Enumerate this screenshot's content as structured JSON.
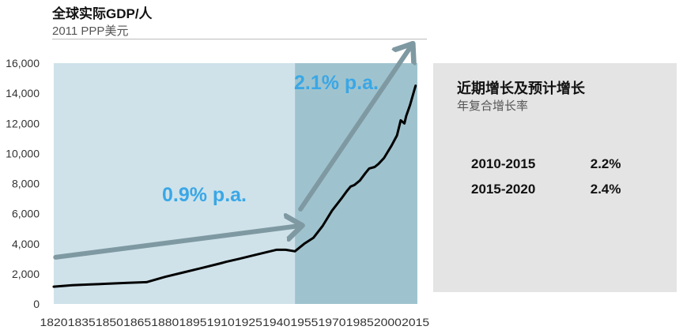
{
  "chart_data": {
    "type": "line",
    "title": "全球实际GDP/人",
    "subtitle": "2011 PPP美元",
    "ylim": [
      0,
      16000
    ],
    "yticks": [
      "16,000",
      "14,000",
      "12,000",
      "10,000",
      "8,000",
      "6,000",
      "4,000",
      "2,000",
      "0"
    ],
    "ytick_values": [
      16000,
      14000,
      12000,
      10000,
      8000,
      6000,
      4000,
      2000,
      0
    ],
    "xlim": [
      1820,
      2016
    ],
    "xticks": [
      1820,
      1835,
      1850,
      1865,
      1880,
      1895,
      1910,
      1925,
      1940,
      1955,
      1970,
      1985,
      2000,
      2015
    ],
    "xtick_labels": [
      "1820",
      "1835",
      "1850",
      "1865",
      "1880",
      "1895",
      "1910",
      "1925",
      "1940",
      "1955",
      "1970",
      "1985",
      "2000",
      "2015"
    ],
    "regions": [
      {
        "x0": 1820,
        "x1": 1950,
        "color": "#cfe2ea"
      },
      {
        "x0": 1950,
        "x1": 2016,
        "color": "#9fc3ce"
      }
    ],
    "series": [
      {
        "color": "#000000",
        "x": [
          1820,
          1830,
          1840,
          1850,
          1860,
          1870,
          1880,
          1890,
          1900,
          1910,
          1913,
          1920,
          1930,
          1940,
          1945,
          1950,
          1955,
          1960,
          1965,
          1970,
          1975,
          1978,
          1980,
          1982,
          1985,
          1988,
          1990,
          1993,
          1995,
          1998,
          2000,
          2002,
          2005,
          2007,
          2009,
          2010,
          2012,
          2015
        ],
        "y": [
          1150,
          1250,
          1300,
          1350,
          1400,
          1450,
          1800,
          2100,
          2400,
          2700,
          2800,
          3000,
          3300,
          3600,
          3600,
          3500,
          4000,
          4400,
          5200,
          6200,
          7000,
          7500,
          7800,
          7900,
          8200,
          8700,
          9000,
          9100,
          9300,
          9700,
          10100,
          10500,
          11200,
          12200,
          12000,
          12500,
          13200,
          14500
        ]
      }
    ],
    "trend_arrows": [
      {
        "label": "0.9% p.a.",
        "x0": 1821,
        "y0": 3100,
        "x1": 1953,
        "y1": 5200
      },
      {
        "label": "2.1% p.a.",
        "x0": 1953,
        "y0": 6300,
        "x1": 2013,
        "y1": 17200
      }
    ],
    "side_panel": {
      "title": "近期增长及预计增长",
      "subtitle": "年复合增长率",
      "rows": [
        {
          "period": "2010-2015",
          "rate": "2.2%"
        },
        {
          "period": "2015-2020",
          "rate": "2.4%"
        }
      ]
    }
  }
}
